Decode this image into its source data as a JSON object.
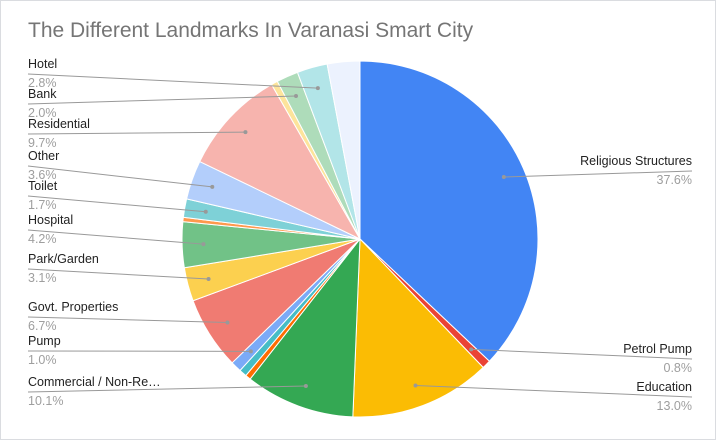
{
  "chart_data": {
    "type": "pie",
    "title": "The Different Landmarks In Varanasi Smart City",
    "legend": "none",
    "slices": [
      {
        "label": "Religious Structures",
        "value_label": "37.6%",
        "value": 37.6,
        "color": "#4285f4"
      },
      {
        "label": "Petrol Pump",
        "value_label": "0.8%",
        "value": 0.8,
        "color": "#ea4335"
      },
      {
        "label": "Education",
        "value_label": "13.0%",
        "value": 13.0,
        "color": "#fbbc04"
      },
      {
        "label": "Commercial / Non-Re…",
        "value_label": "10.1%",
        "value": 10.1,
        "color": "#34a853"
      },
      {
        "label": "",
        "value_label": "",
        "value": 0.5,
        "color": "#ff6d01"
      },
      {
        "label": "",
        "value_label": "",
        "value": 0.7,
        "color": "#46bdc6"
      },
      {
        "label": "Pump",
        "value_label": "1.0%",
        "value": 1.0,
        "color": "#7baaf7"
      },
      {
        "label": "Govt. Properties",
        "value_label": "6.7%",
        "value": 6.7,
        "color": "#f07b72"
      },
      {
        "label": "Park/Garden",
        "value_label": "3.1%",
        "value": 3.1,
        "color": "#fcd04f"
      },
      {
        "label": "Hospital",
        "value_label": "4.2%",
        "value": 4.2,
        "color": "#71c287"
      },
      {
        "label": "",
        "value_label": "",
        "value": 0.4,
        "color": "#ff994d"
      },
      {
        "label": "Toilet",
        "value_label": "1.7%",
        "value": 1.7,
        "color": "#7ed1d7"
      },
      {
        "label": "Other",
        "value_label": "3.6%",
        "value": 3.6,
        "color": "#b3cefb"
      },
      {
        "label": "Residential",
        "value_label": "9.7%",
        "value": 9.7,
        "color": "#f7b4ae"
      },
      {
        "label": "",
        "value_label": "",
        "value": 0.6,
        "color": "#fde49b"
      },
      {
        "label": "Bank",
        "value_label": "2.0%",
        "value": 2.0,
        "color": "#aedcba"
      },
      {
        "label": "Hotel",
        "value_label": "2.8%",
        "value": 2.8,
        "color": "#b2e5e8"
      },
      {
        "label": "",
        "value_label": "",
        "value": 3.0,
        "color": "#ecf2fe"
      }
    ]
  }
}
